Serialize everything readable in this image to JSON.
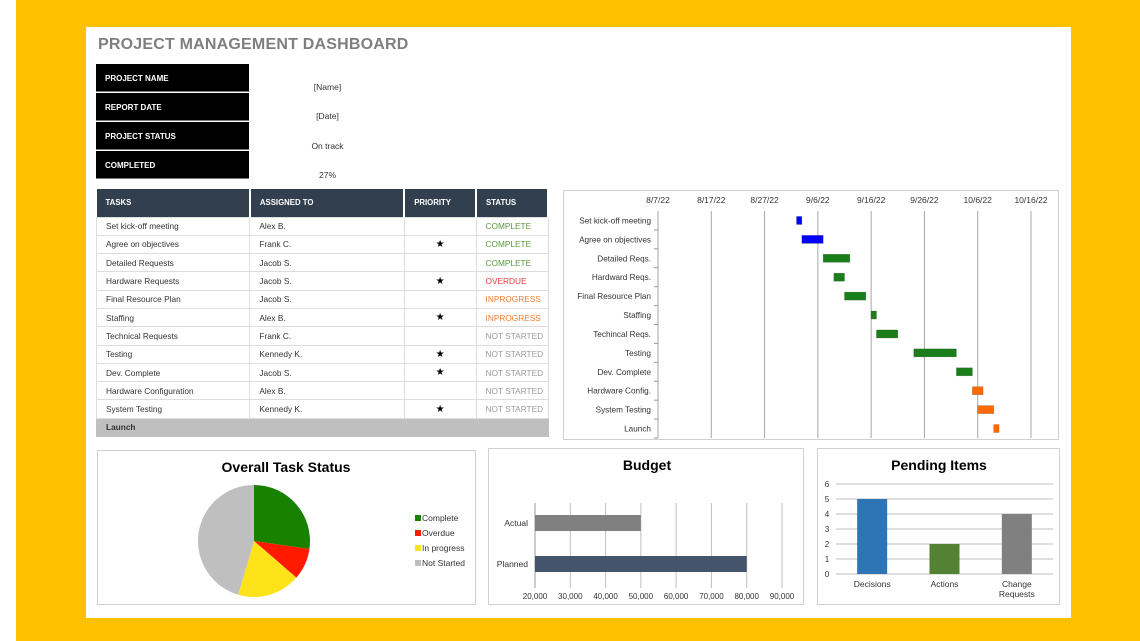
{
  "title": "PROJECT MANAGEMENT DASHBOARD",
  "info": [
    {
      "label": "PROJECT NAME",
      "value": "[Name]"
    },
    {
      "label": "REPORT DATE",
      "value": "[Date]"
    },
    {
      "label": "PROJECT STATUS",
      "value": "On track"
    },
    {
      "label": "COMPLETED",
      "value": "27%"
    }
  ],
  "table": {
    "headers": [
      "TASKS",
      "ASSIGNED TO",
      "PRIORITY",
      "STATUS"
    ],
    "rows": [
      {
        "task": "Set kick-off meeting",
        "assigned": "Alex B.",
        "priority": "",
        "status": "COMPLETE"
      },
      {
        "task": "Agree on objectives",
        "assigned": "Frank C.",
        "priority": "★",
        "status": "COMPLETE"
      },
      {
        "task": "Detailed Requests",
        "assigned": "Jacob S.",
        "priority": "",
        "status": "COMPLETE"
      },
      {
        "task": "Hardware Requests",
        "assigned": "Jacob S.",
        "priority": "★",
        "status": "OVERDUE"
      },
      {
        "task": "Final Resource Plan",
        "assigned": "Jacob S.",
        "priority": "",
        "status": "INPROGRESS"
      },
      {
        "task": "Staffing",
        "assigned": "Alex B.",
        "priority": "★",
        "status": "INPROGRESS"
      },
      {
        "task": "Technical Requests",
        "assigned": "Frank C.",
        "priority": "",
        "status": "NOT STARTED"
      },
      {
        "task": "Testing",
        "assigned": "Kennedy K.",
        "priority": "★",
        "status": "NOT STARTED"
      },
      {
        "task": "Dev. Complete",
        "assigned": "Jacob S.",
        "priority": "★",
        "status": "NOT STARTED"
      },
      {
        "task": "Hardware Configuration",
        "assigned": "Alex B.",
        "priority": "",
        "status": "NOT STARTED"
      },
      {
        "task": "System Testing",
        "assigned": "Kennedy K.",
        "priority": "★",
        "status": "NOT STARTED"
      }
    ],
    "footer": "Launch",
    "status_colors": {
      "COMPLETE": "#5a9a3a",
      "OVERDUE": "#e03c3c",
      "INPROGRESS": "#ee7d31",
      "NOT STARTED": "#9a9a9a"
    }
  },
  "chart_data": [
    {
      "type": "gantt",
      "x_ticks": [
        "8/7/22",
        "8/17/22",
        "8/27/22",
        "9/6/22",
        "9/16/22",
        "9/26/22",
        "10/6/22",
        "10/16/22"
      ],
      "xlim": [
        "2022-08-07",
        "2022-10-16"
      ],
      "grid": true,
      "tasks": [
        {
          "label": "Set kick-off meeting",
          "start": "2022-09-02",
          "days": 1,
          "color": "#0000ff"
        },
        {
          "label": "Agree on objectives",
          "start": "2022-09-03",
          "days": 4,
          "color": "#0000ff"
        },
        {
          "label": "Detailed Reqs.",
          "start": "2022-09-07",
          "days": 5,
          "color": "#1a7f1a"
        },
        {
          "label": "Hardward Reqs.",
          "start": "2022-09-09",
          "days": 2,
          "color": "#1a7f1a"
        },
        {
          "label": "Final Resource Plan",
          "start": "2022-09-11",
          "days": 4,
          "color": "#1a7f1a"
        },
        {
          "label": "Staffing",
          "start": "2022-09-16",
          "days": 1,
          "color": "#1a7f1a"
        },
        {
          "label": "Techincal Reqs.",
          "start": "2022-09-17",
          "days": 4,
          "color": "#1a7f1a"
        },
        {
          "label": "Testing",
          "start": "2022-09-24",
          "days": 8,
          "color": "#1a7f1a"
        },
        {
          "label": "Dev. Complete",
          "start": "2022-10-02",
          "days": 3,
          "color": "#1a7f1a"
        },
        {
          "label": "Hardware Config.",
          "start": "2022-10-05",
          "days": 2,
          "color": "#ff6a00"
        },
        {
          "label": "System Testing",
          "start": "2022-10-06",
          "days": 3,
          "color": "#ff6a00"
        },
        {
          "label": "Launch",
          "start": "2022-10-09",
          "days": 1,
          "color": "#ff6a00"
        }
      ]
    },
    {
      "type": "pie",
      "title": "Overall Task Status",
      "legend": "right",
      "slices": [
        {
          "name": "Complete",
          "value": 3,
          "color": "#188200"
        },
        {
          "name": "Overdue",
          "value": 1,
          "color": "#ff1a00"
        },
        {
          "name": "In progress",
          "value": 2,
          "color": "#ffe31a"
        },
        {
          "name": "Not Started",
          "value": 5,
          "color": "#bfbfbf"
        }
      ]
    },
    {
      "type": "bar",
      "orientation": "horizontal",
      "title": "Budget",
      "categories": [
        "Actual",
        "Planned"
      ],
      "values": [
        50000,
        80000
      ],
      "colors": [
        "#808080",
        "#44546a"
      ],
      "xlim": [
        20000,
        90000
      ],
      "x_ticks": [
        "20,000",
        "30,000",
        "40,000",
        "50,000",
        "60,000",
        "70,000",
        "80,000",
        "90,000"
      ],
      "grid": true
    },
    {
      "type": "bar",
      "title": "Pending Items",
      "categories": [
        "Decisions",
        "Actions",
        "Change Requests"
      ],
      "values": [
        5,
        2,
        4
      ],
      "colors": [
        "#2e75b6",
        "#548235",
        "#808080"
      ],
      "ylim": [
        0,
        6
      ],
      "y_ticks": [
        "0",
        "1",
        "2",
        "3",
        "4",
        "5",
        "6"
      ],
      "grid": true
    }
  ]
}
